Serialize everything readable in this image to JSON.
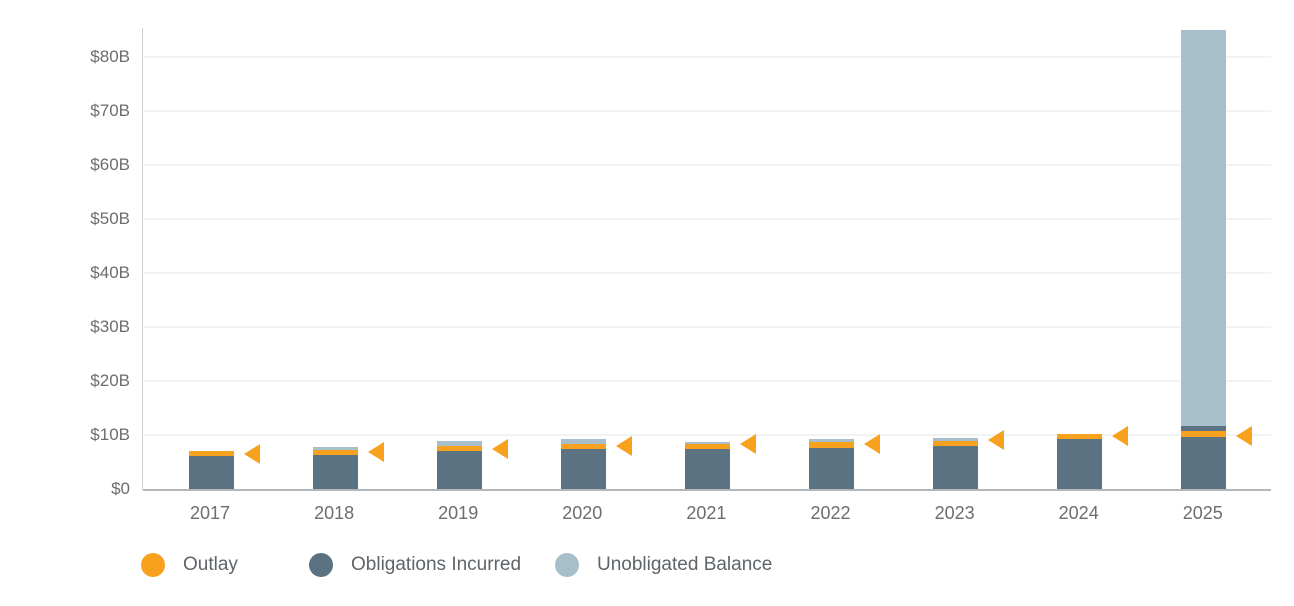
{
  "colors": {
    "outlay": "#F8A11E",
    "obligations": "#5B7282",
    "unobligated": "#A7BECB",
    "grid": "#F2F3F3",
    "axis_line": "#CDD0D2",
    "baseline": "#B4B7B9",
    "tick_text": "#6D6D6D",
    "legend_text": "#5F6468"
  },
  "legend": {
    "items": [
      {
        "label": "Outlay",
        "color_key": "outlay"
      },
      {
        "label": "Obligations Incurred",
        "color_key": "obligations"
      },
      {
        "label": "Unobligated Balance",
        "color_key": "unobligated"
      }
    ]
  },
  "chart_data": {
    "type": "bar",
    "stacked": true,
    "title": "",
    "xlabel": "",
    "ylabel": "",
    "grid": "horizontal",
    "legend_position": "bottom",
    "categories": [
      "2017",
      "2018",
      "2019",
      "2020",
      "2021",
      "2022",
      "2023",
      "2024",
      "2025"
    ],
    "y_ticks": [
      {
        "label": "$0",
        "value": 0
      },
      {
        "label": "$10B",
        "value": 10
      },
      {
        "label": "$20B",
        "value": 20
      },
      {
        "label": "$30B",
        "value": 30
      },
      {
        "label": "$40B",
        "value": 40
      },
      {
        "label": "$50B",
        "value": 50
      },
      {
        "label": "$60B",
        "value": 60
      },
      {
        "label": "$70B",
        "value": 70
      },
      {
        "label": "$80B",
        "value": 80
      }
    ],
    "ylim": [
      0,
      85.5
    ],
    "unit": "billions of dollars",
    "series": [
      {
        "name": "Obligations Incurred",
        "color_key": "obligations",
        "values": [
          6.1,
          6.3,
          7.0,
          7.4,
          7.35,
          7.65,
          8.0,
          9.3,
          9.7
        ]
      },
      {
        "name": "Outlay",
        "color_key": "outlay",
        "values": [
          0.9,
          0.9,
          1.0,
          1.0,
          0.95,
          1.0,
          0.9,
          0.9,
          1.0
        ]
      },
      {
        "name": "Obligations Incurred (upper)",
        "color_key": "obligations",
        "values": [
          0,
          0,
          0,
          0,
          0,
          0,
          0,
          0,
          1.0
        ]
      },
      {
        "name": "Unobligated Balance",
        "color_key": "unobligated",
        "values": [
          0,
          0.6,
          0.8,
          0.9,
          0.4,
          0.55,
          0.6,
          0,
          73.3
        ]
      }
    ],
    "bar_totals": [
      7.0,
      7.8,
      8.8,
      9.3,
      8.7,
      9.2,
      9.5,
      10.2,
      85.0
    ],
    "outlay_markers": {
      "shape": "left-pointing-triangle",
      "color_key": "outlay",
      "values": [
        6.5,
        6.8,
        7.5,
        7.9,
        8.3,
        8.4,
        9.1,
        9.8,
        9.9
      ]
    }
  }
}
